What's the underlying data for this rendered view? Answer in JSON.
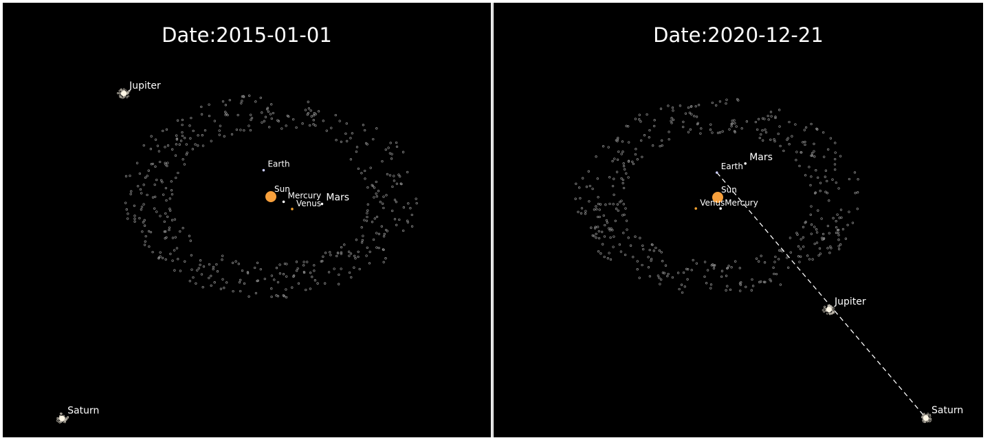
{
  "chart_data": [
    {
      "type": "scatter",
      "title_prefix": "Date: ",
      "date": "2015-01-01",
      "bodies": [
        {
          "name": "Sun",
          "x": 0.0,
          "y": 0.0,
          "color": "#f7a03c",
          "size": "large"
        },
        {
          "name": "Mercury",
          "x": 0.3,
          "y": -0.12,
          "color": "#ffffff",
          "size": "small"
        },
        {
          "name": "Venus",
          "x": 0.5,
          "y": -0.29,
          "color": "#f0a030",
          "size": "small"
        },
        {
          "name": "Earth",
          "x": -0.17,
          "y": 0.62,
          "color": "#c9ccff",
          "size": "small"
        },
        {
          "name": "Mars",
          "x": 1.2,
          "y": -0.17,
          "color": "#ffffff",
          "size": "small"
        },
        {
          "name": "Jupiter",
          "x": -3.45,
          "y": 2.42,
          "color": "#fff7e6",
          "size": "medium",
          "cloud": true
        },
        {
          "name": "Saturn",
          "x": -4.9,
          "y": -5.2,
          "color": "#fff7e6",
          "size": "medium",
          "cloud": true
        }
      ],
      "asteroid_belt": {
        "center": [
          0.0,
          0.0
        ],
        "rx": 2.9,
        "ry": 2.0,
        "count": 430,
        "color": "#9a9a9a"
      },
      "line": null
    },
    {
      "type": "scatter",
      "title_prefix": "Date: ",
      "date": "2020-12-21",
      "bodies": [
        {
          "name": "Sun",
          "x": 0.0,
          "y": 0.0,
          "color": "#f7a03c",
          "size": "large"
        },
        {
          "name": "Mercury",
          "x": 0.07,
          "y": -0.27,
          "color": "#ffffff",
          "size": "small"
        },
        {
          "name": "Venus",
          "x": -0.53,
          "y": -0.27,
          "color": "#f0a030",
          "size": "small"
        },
        {
          "name": "Earth",
          "x": -0.02,
          "y": 0.6,
          "color": "#c9ccff",
          "size": "small"
        },
        {
          "name": "Mars",
          "x": 0.67,
          "y": 0.82,
          "color": "#ffffff",
          "size": "small"
        },
        {
          "name": "Jupiter",
          "x": 2.7,
          "y": -2.72,
          "color": "#fff7e6",
          "size": "medium",
          "cloud": true
        },
        {
          "name": "Saturn",
          "x": 5.05,
          "y": -5.35,
          "color": "#fff7e6",
          "size": "medium",
          "cloud": true
        }
      ],
      "asteroid_belt": {
        "center": [
          0.0,
          0.0
        ],
        "rx": 2.9,
        "ry": 2.0,
        "count": 430,
        "color": "#9a9a9a"
      },
      "line": {
        "from": "Earth",
        "to": "Saturn",
        "style": "dashed",
        "color": "#ffffff"
      }
    }
  ]
}
